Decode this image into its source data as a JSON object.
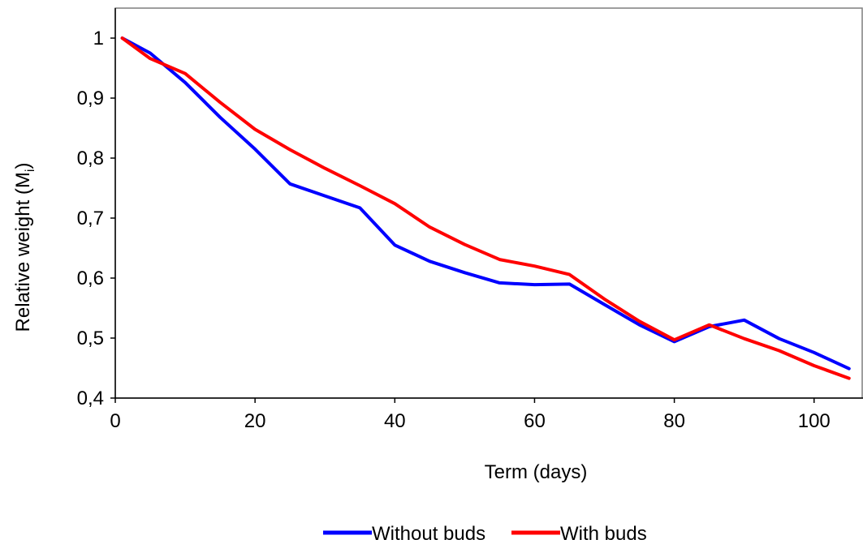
{
  "chart_data": {
    "type": "line",
    "title": "",
    "xlabel": "Term (days)",
    "ylabel_main": "Relative weight (M",
    "ylabel_sub": "i",
    "ylabel_close": ")",
    "xlim": [
      0,
      107
    ],
    "ylim": [
      0.4,
      1.05
    ],
    "x_ticks": [
      0,
      20,
      40,
      60,
      80,
      100
    ],
    "x_tick_labels": [
      "0",
      "20",
      "40",
      "60",
      "80",
      "100"
    ],
    "y_ticks": [
      0.4,
      0.5,
      0.6,
      0.7,
      0.8,
      0.9,
      1.0
    ],
    "y_tick_labels": [
      "0,4",
      "0,5",
      "0,6",
      "0,7",
      "0,8",
      "0,9",
      "1"
    ],
    "grid": false,
    "legend_position": "bottom",
    "x": [
      1,
      5,
      10,
      15,
      20,
      25,
      30,
      35,
      40,
      45,
      50,
      55,
      60,
      65,
      70,
      75,
      80,
      85,
      90,
      95,
      100,
      105
    ],
    "series": [
      {
        "name": "Without buds",
        "color": "#0000ff",
        "values": [
          1.0,
          0.975,
          0.926,
          0.868,
          0.815,
          0.757,
          0.737,
          0.717,
          0.655,
          0.628,
          0.609,
          0.592,
          0.589,
          0.59,
          0.556,
          0.522,
          0.494,
          0.519,
          0.53,
          0.499,
          0.476,
          0.449
        ]
      },
      {
        "name": "With buds",
        "color": "#ff0000",
        "values": [
          1.0,
          0.966,
          0.941,
          0.893,
          0.848,
          0.814,
          0.783,
          0.754,
          0.724,
          0.685,
          0.656,
          0.631,
          0.62,
          0.606,
          0.565,
          0.528,
          0.497,
          0.522,
          0.499,
          0.479,
          0.454,
          0.433
        ]
      }
    ]
  }
}
